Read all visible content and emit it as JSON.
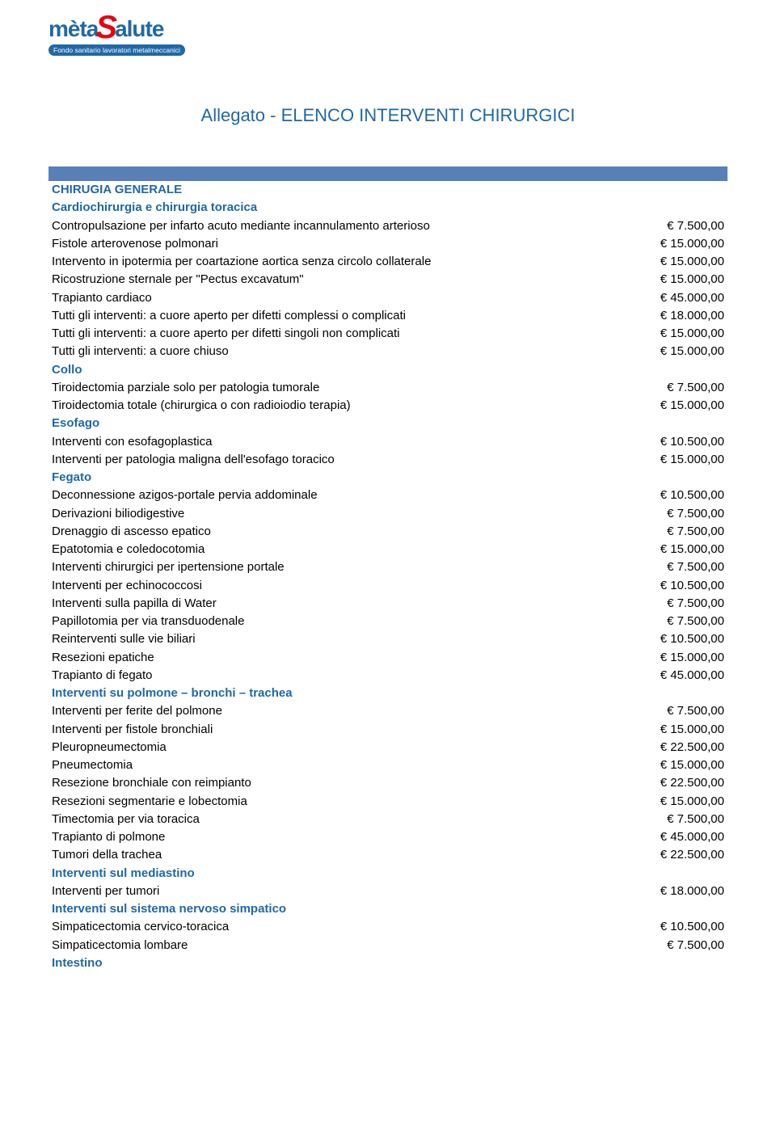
{
  "logo": {
    "meta": "mèta",
    "accent": "S",
    "alute": "alute",
    "subtitle": "Fondo sanitario lavoratori metalmeccanici"
  },
  "title": "Allegato - ELENCO INTERVENTI CHIRURGICI",
  "colors": {
    "brand_blue": "#2168a6",
    "brand_red": "#e30613",
    "bar_blue": "#5880b6",
    "text": "#000000"
  },
  "rows": [
    {
      "type": "bar"
    },
    {
      "type": "heading",
      "label": "CHIRUGIA GENERALE"
    },
    {
      "type": "heading",
      "label": "Cardiochirurgia e chirurgia toracica"
    },
    {
      "type": "item",
      "label": "Contropulsazione per infarto acuto mediante incannulamento arterioso",
      "value": "€ 7.500,00"
    },
    {
      "type": "item",
      "label": "Fistole arterovenose polmonari",
      "value": "€ 15.000,00"
    },
    {
      "type": "item",
      "label": "Intervento in ipotermia per coartazione aortica senza circolo collaterale",
      "value": "€ 15.000,00"
    },
    {
      "type": "item",
      "label": "Ricostruzione sternale per \"Pectus excavatum\"",
      "value": "€ 15.000,00"
    },
    {
      "type": "item",
      "label": "Trapianto cardiaco",
      "value": "€ 45.000,00"
    },
    {
      "type": "item",
      "label": "Tutti gli interventi: a cuore aperto per difetti complessi o complicati",
      "value": "€ 18.000,00"
    },
    {
      "type": "item",
      "label": "Tutti gli interventi: a cuore aperto per difetti singoli non complicati",
      "value": "€ 15.000,00"
    },
    {
      "type": "item",
      "label": "Tutti gli interventi: a cuore chiuso",
      "value": "€ 15.000,00"
    },
    {
      "type": "heading",
      "label": "Collo"
    },
    {
      "type": "item",
      "label": "Tiroidectomia parziale solo per patologia tumorale",
      "value": "€ 7.500,00"
    },
    {
      "type": "item",
      "label": "Tiroidectomia totale (chirurgica o con radioiodio terapia)",
      "value": "€ 15.000,00"
    },
    {
      "type": "heading",
      "label": "Esofago"
    },
    {
      "type": "item",
      "label": "Interventi con esofagoplastica",
      "value": "€ 10.500,00"
    },
    {
      "type": "item",
      "label": "Interventi per patologia maligna dell'esofago toracico",
      "value": "€ 15.000,00"
    },
    {
      "type": "heading",
      "label": "Fegato"
    },
    {
      "type": "item",
      "label": "Deconnessione azigos-portale pervia addominale",
      "value": "€ 10.500,00"
    },
    {
      "type": "item",
      "label": "Derivazioni biliodigestive",
      "value": "€ 7.500,00"
    },
    {
      "type": "item",
      "label": "Drenaggio di ascesso epatico",
      "value": "€ 7.500,00"
    },
    {
      "type": "item",
      "label": "Epatotomia e coledocotomia",
      "value": "€ 15.000,00"
    },
    {
      "type": "item",
      "label": "Interventi chirurgici per ipertensione portale",
      "value": "€ 7.500,00"
    },
    {
      "type": "item",
      "label": "Interventi per echinococcosi",
      "value": "€ 10.500,00"
    },
    {
      "type": "item",
      "label": "Interventi sulla papilla di Water",
      "value": "€ 7.500,00"
    },
    {
      "type": "item",
      "label": "Papillotomia per via transduodenale",
      "value": "€ 7.500,00"
    },
    {
      "type": "item",
      "label": "Reinterventi sulle vie biliari",
      "value": "€ 10.500,00"
    },
    {
      "type": "item",
      "label": "Resezioni epatiche",
      "value": "€ 15.000,00"
    },
    {
      "type": "item",
      "label": "Trapianto di fegato",
      "value": "€ 45.000,00"
    },
    {
      "type": "heading",
      "label": "Interventi su polmone – bronchi – trachea"
    },
    {
      "type": "item",
      "label": "Interventi per ferite del polmone",
      "value": "€ 7.500,00"
    },
    {
      "type": "item",
      "label": "Interventi per fistole bronchiali",
      "value": "€ 15.000,00"
    },
    {
      "type": "item",
      "label": "Pleuropneumectomia",
      "value": "€ 22.500,00"
    },
    {
      "type": "item",
      "label": "Pneumectomia",
      "value": "€ 15.000,00"
    },
    {
      "type": "item",
      "label": "Resezione bronchiale con reimpianto",
      "value": "€ 22.500,00"
    },
    {
      "type": "item",
      "label": "Resezioni segmentarie e lobectomia",
      "value": "€ 15.000,00"
    },
    {
      "type": "item",
      "label": "Timectomia per via toracica",
      "value": "€ 7.500,00"
    },
    {
      "type": "item",
      "label": "Trapianto di polmone",
      "value": "€ 45.000,00"
    },
    {
      "type": "item",
      "label": "Tumori della trachea",
      "value": "€ 22.500,00"
    },
    {
      "type": "heading",
      "label": "Interventi sul mediastino"
    },
    {
      "type": "item",
      "label": "Interventi per tumori",
      "value": "€ 18.000,00"
    },
    {
      "type": "heading",
      "label": "Interventi sul sistema nervoso simpatico"
    },
    {
      "type": "item",
      "label": "Simpaticectomia cervico-toracica",
      "value": "€ 10.500,00"
    },
    {
      "type": "item",
      "label": "Simpaticectomia lombare",
      "value": "€ 7.500,00"
    },
    {
      "type": "heading",
      "label": "Intestino"
    }
  ]
}
